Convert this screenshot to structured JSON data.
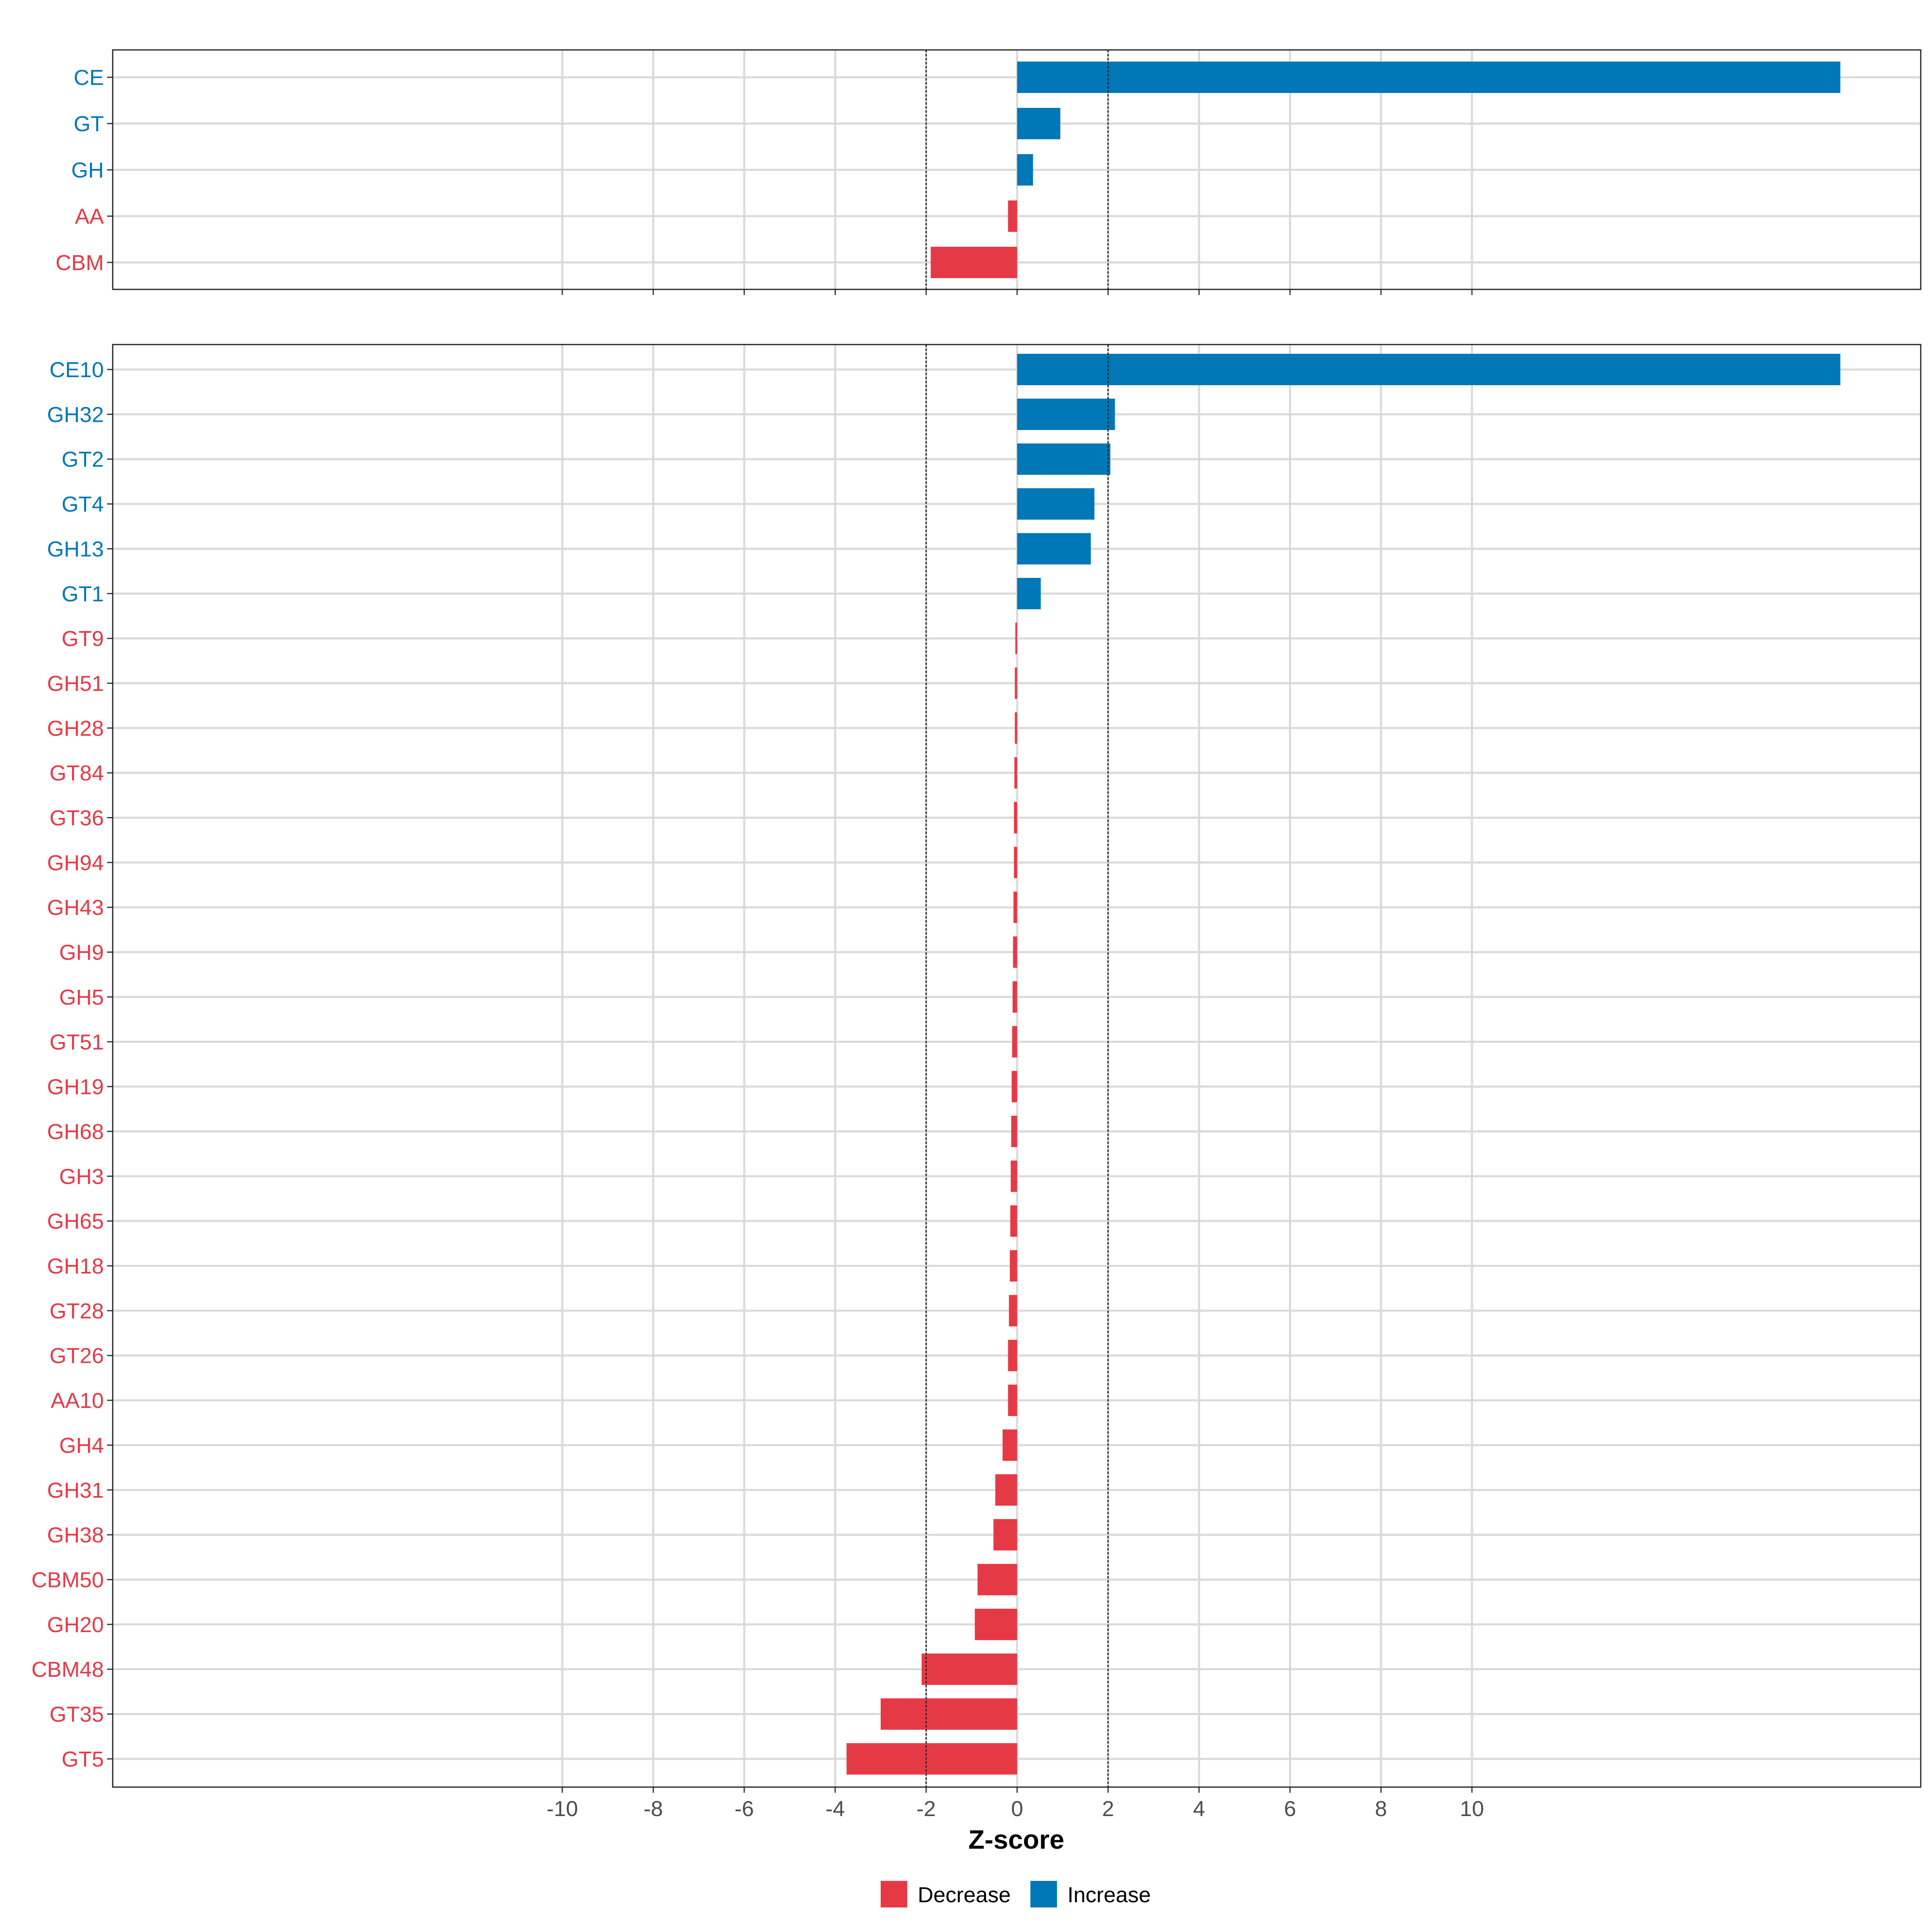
{
  "chart_data": [
    {
      "type": "bar",
      "orientation": "horizontal",
      "panel": "top",
      "categories": [
        "CE",
        "GT",
        "GH",
        "AA",
        "CBM"
      ],
      "values": [
        18.1,
        0.95,
        0.35,
        -0.2,
        -1.9
      ],
      "direction": [
        "Increase",
        "Increase",
        "Increase",
        "Decrease",
        "Decrease"
      ]
    },
    {
      "type": "bar",
      "orientation": "horizontal",
      "panel": "bottom",
      "categories": [
        "CE10",
        "GH32",
        "GT2",
        "GT4",
        "GH13",
        "GT1",
        "GT9",
        "GH51",
        "GH28",
        "GT84",
        "GT36",
        "GH94",
        "GH43",
        "GH9",
        "GH5",
        "GT51",
        "GH19",
        "GH68",
        "GH3",
        "GH65",
        "GH18",
        "GT28",
        "GT26",
        "AA10",
        "GH4",
        "GH31",
        "GH38",
        "CBM50",
        "GH20",
        "CBM48",
        "GT35",
        "GT5"
      ],
      "values": [
        18.1,
        2.15,
        2.05,
        1.7,
        1.62,
        0.52,
        -0.04,
        -0.05,
        -0.05,
        -0.06,
        -0.07,
        -0.07,
        -0.08,
        -0.09,
        -0.1,
        -0.11,
        -0.12,
        -0.13,
        -0.14,
        -0.15,
        -0.16,
        -0.18,
        -0.2,
        -0.2,
        -0.32,
        -0.48,
        -0.52,
        -0.87,
        -0.93,
        -2.1,
        -3.0,
        -3.75
      ],
      "direction": [
        "Increase",
        "Increase",
        "Increase",
        "Increase",
        "Increase",
        "Increase",
        "Decrease",
        "Decrease",
        "Decrease",
        "Decrease",
        "Decrease",
        "Decrease",
        "Decrease",
        "Decrease",
        "Decrease",
        "Decrease",
        "Decrease",
        "Decrease",
        "Decrease",
        "Decrease",
        "Decrease",
        "Decrease",
        "Decrease",
        "Decrease",
        "Decrease",
        "Decrease",
        "Decrease",
        "Decrease",
        "Decrease",
        "Decrease",
        "Decrease",
        "Decrease"
      ]
    }
  ],
  "axis": {
    "xlabel": "Z-score",
    "xlim": [
      -20,
      20
    ],
    "ticks": [
      -10,
      -8,
      -6,
      -4,
      -2,
      0,
      2,
      4,
      6,
      8,
      10
    ],
    "reference_lines": [
      -2,
      2
    ],
    "grid": true
  },
  "legend": {
    "placement": "bottom",
    "entries": [
      {
        "label": "Decrease",
        "color": "#e63946"
      },
      {
        "label": "Increase",
        "color": "#0077b6"
      }
    ]
  }
}
